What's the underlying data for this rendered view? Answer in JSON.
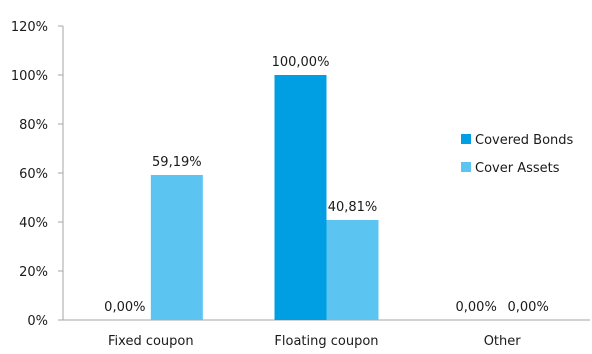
{
  "chart_data": {
    "type": "bar",
    "categories": [
      "Fixed coupon",
      "Floating coupon",
      "Other"
    ],
    "series": [
      {
        "name": "Covered Bonds",
        "color": "#009fe3",
        "values": [
          0,
          100,
          0
        ],
        "labels": [
          "0,00%",
          "100,00%",
          "0,00%"
        ]
      },
      {
        "name": "Cover Assets",
        "color": "#5bc4f1",
        "values": [
          59.19,
          40.81,
          0
        ],
        "labels": [
          "59,19%",
          "40,81%",
          "0,00%"
        ]
      }
    ],
    "ylim": [
      0,
      120
    ],
    "yticks": [
      0,
      20,
      40,
      60,
      80,
      100,
      120
    ],
    "ytick_labels": [
      "0%",
      "20%",
      "40%",
      "60%",
      "80%",
      "100%",
      "120%"
    ],
    "title": "",
    "xlabel": "",
    "ylabel": "",
    "grid": false,
    "legend_position": "right"
  }
}
